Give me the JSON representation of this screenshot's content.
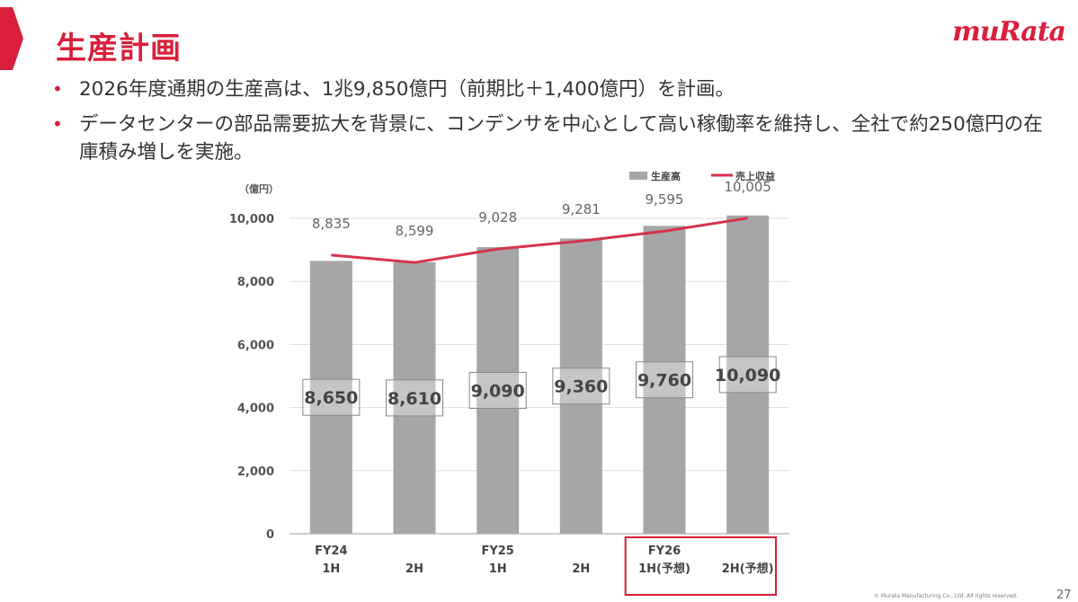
{
  "header": {
    "title": "生産計画",
    "logo": "muRata"
  },
  "bullets": [
    "2026年度通期の生産高は、1兆9,850億円（前期比＋1,400億円）を計画。",
    "データセンターの部品需要拡大を背景に、コンデンサを中心として高い稼働率を維持し、全社で約250億円の在庫積み増しを実施。"
  ],
  "colors": {
    "brand": "#d91f3c",
    "bar": "#a6a6a6",
    "line": "#d6334c",
    "text": "#333333"
  },
  "chart_data": {
    "type": "bar",
    "unit_label": "（億円）",
    "categories": [
      [
        "FY24",
        "1H"
      ],
      [
        "",
        "2H"
      ],
      [
        "FY25",
        "1H"
      ],
      [
        "",
        "2H"
      ],
      [
        "FY26",
        "1H(予想)"
      ],
      [
        "",
        "2H(予想)"
      ]
    ],
    "series": [
      {
        "name": "生産高",
        "type": "bar",
        "values": [
          8650,
          8610,
          9090,
          9360,
          9760,
          10090
        ]
      },
      {
        "name": "売上収益",
        "type": "line",
        "values": [
          8835,
          8599,
          9028,
          9281,
          9595,
          10005
        ]
      }
    ],
    "y_ticks": [
      "10,000",
      "8,000",
      "6,000",
      "4,000",
      "2,000",
      "0"
    ],
    "ylim": [
      0,
      10000
    ],
    "bar_value_labels": [
      "8,650",
      "8,610",
      "9,090",
      "9,360",
      "9,760",
      "10,090"
    ],
    "line_value_labels": [
      "8,835",
      "8,599",
      "9,028",
      "9,281",
      "9,595",
      "10,005"
    ],
    "highlight_categories": [
      4,
      5
    ],
    "legend_position": "top-right",
    "grid": true
  },
  "footer": {
    "copyright": "© Murata Manufacturing Co., Ltd. All rights reserved.",
    "page_number": "27"
  }
}
